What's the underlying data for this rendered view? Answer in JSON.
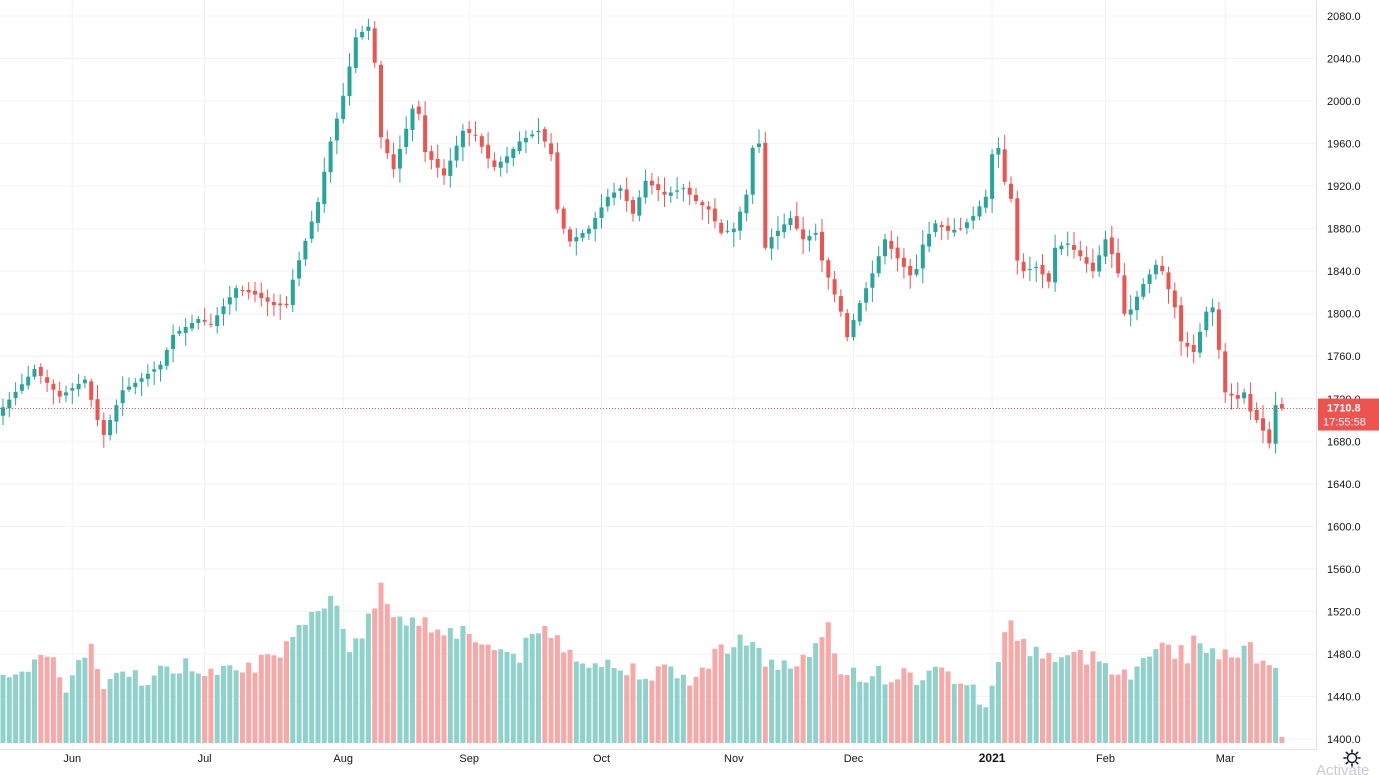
{
  "colors": {
    "up": "#26a69a",
    "down": "#ef5350",
    "volume_up": "#8fd1cb",
    "volume_down": "#f7a9a7",
    "grid": "#f0f3fa",
    "axis_text": "#131722"
  },
  "settings_icon": "gear-icon",
  "watermark": "Activate",
  "chart_data": {
    "type": "candlestick",
    "title": "",
    "xlabel": "",
    "ylabel": "",
    "ylim": [
      1398,
      2094
    ],
    "y_ticks": [
      "1400.0",
      "1440.0",
      "1480.0",
      "1520.0",
      "1560.0",
      "1600.0",
      "1640.0",
      "1680.0",
      "1720.0",
      "1760.0",
      "1800.0",
      "1840.0",
      "1880.0",
      "1920.0",
      "1960.0",
      "2000.0",
      "2040.0",
      "2080.0"
    ],
    "x_ticks": [
      {
        "label": "Jun",
        "index": 11,
        "bold": false
      },
      {
        "label": "Jul",
        "index": 32,
        "bold": false
      },
      {
        "label": "Aug",
        "index": 54,
        "bold": false
      },
      {
        "label": "Sep",
        "index": 74,
        "bold": false
      },
      {
        "label": "Oct",
        "index": 95,
        "bold": false
      },
      {
        "label": "Nov",
        "index": 116,
        "bold": false
      },
      {
        "label": "Dec",
        "index": 135,
        "bold": false
      },
      {
        "label": "2021",
        "index": 157,
        "bold": true
      },
      {
        "label": "Feb",
        "index": 175,
        "bold": false
      },
      {
        "label": "Mar",
        "index": 194,
        "bold": false
      }
    ],
    "last_price": {
      "value": 1710.8,
      "label": "1710.8",
      "countdown": "17:55:58"
    },
    "anchors": [
      [
        0,
        1712
      ],
      [
        5,
        1748
      ],
      [
        9,
        1722
      ],
      [
        13,
        1738
      ],
      [
        15,
        1700
      ],
      [
        16,
        1686
      ],
      [
        19,
        1728
      ],
      [
        21,
        1735
      ],
      [
        25,
        1752
      ],
      [
        27,
        1780
      ],
      [
        31,
        1795
      ],
      [
        33,
        1790
      ],
      [
        37,
        1824
      ],
      [
        40,
        1818
      ],
      [
        43,
        1808
      ],
      [
        45,
        1808
      ],
      [
        46,
        1832
      ],
      [
        50,
        1905
      ],
      [
        52,
        1962
      ],
      [
        54,
        2005
      ],
      [
        56,
        2060
      ],
      [
        58,
        2070
      ],
      [
        59,
        2036
      ],
      [
        60,
        1966
      ],
      [
        62,
        1936
      ],
      [
        65,
        1993
      ],
      [
        66,
        1988
      ],
      [
        67,
        1952
      ],
      [
        70,
        1930
      ],
      [
        73,
        1972
      ],
      [
        75,
        1968
      ],
      [
        77,
        1946
      ],
      [
        78,
        1938
      ],
      [
        80,
        1948
      ],
      [
        82,
        1962
      ],
      [
        85,
        1972
      ],
      [
        86,
        1962
      ],
      [
        87,
        1950
      ],
      [
        88,
        1898
      ],
      [
        89,
        1880
      ],
      [
        90,
        1868
      ],
      [
        93,
        1880
      ],
      [
        96,
        1910
      ],
      [
        98,
        1918
      ],
      [
        100,
        1894
      ],
      [
        102,
        1925
      ],
      [
        105,
        1912
      ],
      [
        108,
        1918
      ],
      [
        110,
        1906
      ],
      [
        112,
        1898
      ],
      [
        114,
        1876
      ],
      [
        116,
        1880
      ],
      [
        118,
        1912
      ],
      [
        119,
        1956
      ],
      [
        120,
        1960
      ],
      [
        121,
        1862
      ],
      [
        122,
        1872
      ],
      [
        125,
        1890
      ],
      [
        127,
        1870
      ],
      [
        129,
        1876
      ],
      [
        130,
        1850
      ],
      [
        131,
        1834
      ],
      [
        133,
        1802
      ],
      [
        134,
        1778
      ],
      [
        136,
        1810
      ],
      [
        138,
        1838
      ],
      [
        140,
        1870
      ],
      [
        142,
        1852
      ],
      [
        144,
        1836
      ],
      [
        145,
        1842
      ],
      [
        146,
        1865
      ],
      [
        148,
        1885
      ],
      [
        150,
        1878
      ],
      [
        152,
        1880
      ],
      [
        154,
        1892
      ],
      [
        156,
        1910
      ],
      [
        157,
        1950
      ],
      [
        158,
        1956
      ],
      [
        159,
        1924
      ],
      [
        160,
        1908
      ],
      [
        161,
        1850
      ],
      [
        162,
        1840
      ],
      [
        164,
        1844
      ],
      [
        166,
        1830
      ],
      [
        167,
        1862
      ],
      [
        169,
        1866
      ],
      [
        171,
        1854
      ],
      [
        173,
        1840
      ],
      [
        175,
        1870
      ],
      [
        176,
        1856
      ],
      [
        177,
        1838
      ],
      [
        178,
        1800
      ],
      [
        179,
        1804
      ],
      [
        181,
        1828
      ],
      [
        183,
        1846
      ],
      [
        184,
        1840
      ],
      [
        186,
        1806
      ],
      [
        187,
        1774
      ],
      [
        189,
        1764
      ],
      [
        191,
        1802
      ],
      [
        192,
        1806
      ],
      [
        193,
        1766
      ],
      [
        194,
        1726
      ],
      [
        196,
        1720
      ],
      [
        197,
        1726
      ],
      [
        198,
        1708
      ],
      [
        199,
        1700
      ],
      [
        200,
        1690
      ],
      [
        201,
        1678
      ],
      [
        202,
        1714
      ],
      [
        203,
        1710.8
      ]
    ],
    "volume_anchors": [
      [
        0,
        1468
      ],
      [
        4,
        1462
      ],
      [
        8,
        1478
      ],
      [
        10,
        1452
      ],
      [
        14,
        1486
      ],
      [
        16,
        1448
      ],
      [
        20,
        1462
      ],
      [
        24,
        1458
      ],
      [
        28,
        1470
      ],
      [
        32,
        1466
      ],
      [
        36,
        1474
      ],
      [
        40,
        1470
      ],
      [
        44,
        1474
      ],
      [
        48,
        1508
      ],
      [
        52,
        1540
      ],
      [
        55,
        1490
      ],
      [
        58,
        1510
      ],
      [
        60,
        1540
      ],
      [
        62,
        1520
      ],
      [
        66,
        1510
      ],
      [
        70,
        1505
      ],
      [
        74,
        1500
      ],
      [
        78,
        1484
      ],
      [
        82,
        1480
      ],
      [
        86,
        1504
      ],
      [
        90,
        1484
      ],
      [
        94,
        1472
      ],
      [
        98,
        1466
      ],
      [
        102,
        1466
      ],
      [
        106,
        1460
      ],
      [
        110,
        1458
      ],
      [
        113,
        1478
      ],
      [
        116,
        1496
      ],
      [
        118,
        1496
      ],
      [
        120,
        1478
      ],
      [
        124,
        1468
      ],
      [
        128,
        1476
      ],
      [
        131,
        1500
      ],
      [
        133,
        1466
      ],
      [
        136,
        1462
      ],
      [
        140,
        1460
      ],
      [
        144,
        1458
      ],
      [
        148,
        1462
      ],
      [
        152,
        1458
      ],
      [
        155,
        1440
      ],
      [
        156,
        1428
      ],
      [
        158,
        1478
      ],
      [
        160,
        1510
      ],
      [
        162,
        1488
      ],
      [
        165,
        1482
      ],
      [
        168,
        1474
      ],
      [
        172,
        1478
      ],
      [
        176,
        1470
      ],
      [
        179,
        1464
      ],
      [
        182,
        1474
      ],
      [
        184,
        1500
      ],
      [
        186,
        1480
      ],
      [
        188,
        1480
      ],
      [
        190,
        1498
      ],
      [
        192,
        1476
      ],
      [
        194,
        1484
      ],
      [
        196,
        1486
      ],
      [
        198,
        1482
      ],
      [
        200,
        1476
      ],
      [
        202,
        1474
      ],
      [
        203,
        1406
      ]
    ]
  }
}
